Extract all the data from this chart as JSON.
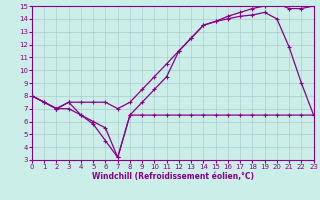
{
  "xlabel": "Windchill (Refroidissement éolien,°C)",
  "xlim": [
    0,
    23
  ],
  "ylim": [
    3,
    15
  ],
  "xticks": [
    0,
    1,
    2,
    3,
    4,
    5,
    6,
    7,
    8,
    9,
    10,
    11,
    12,
    13,
    14,
    15,
    16,
    17,
    18,
    19,
    20,
    21,
    22,
    23
  ],
  "yticks": [
    3,
    4,
    5,
    6,
    7,
    8,
    9,
    10,
    11,
    12,
    13,
    14,
    15
  ],
  "background_color": "#cceee8",
  "grid_color": "#aacccc",
  "line_color": "#880088",
  "line1_x": [
    0,
    1,
    2,
    3,
    4,
    5,
    6,
    7,
    8,
    9,
    10,
    11,
    12,
    13,
    14,
    15,
    16,
    17,
    18,
    19,
    20,
    21,
    22,
    23
  ],
  "line1_y": [
    8.0,
    7.5,
    7.0,
    7.5,
    6.5,
    6.0,
    5.5,
    3.2,
    6.5,
    7.5,
    8.5,
    9.5,
    11.5,
    12.5,
    13.5,
    13.8,
    14.0,
    14.2,
    14.3,
    14.5,
    14.0,
    11.8,
    9.0,
    6.5
  ],
  "line2_x": [
    0,
    1,
    2,
    3,
    4,
    5,
    6,
    7,
    8,
    9,
    10,
    11,
    12,
    13,
    14,
    15,
    16,
    17,
    18,
    19,
    20,
    21,
    22,
    23
  ],
  "line2_y": [
    8.0,
    7.5,
    7.0,
    7.5,
    7.5,
    7.5,
    7.5,
    7.0,
    7.5,
    8.5,
    9.5,
    10.5,
    11.5,
    12.5,
    13.5,
    13.8,
    14.2,
    14.5,
    14.8,
    15.0,
    15.2,
    14.8,
    14.8,
    15.0
  ],
  "line3_x": [
    0,
    1,
    2,
    3,
    4,
    5,
    6,
    7,
    8,
    9,
    10,
    11,
    12,
    13,
    14,
    15,
    16,
    17,
    18,
    19,
    20,
    21,
    22,
    23
  ],
  "line3_y": [
    8.0,
    7.5,
    7.0,
    7.0,
    6.5,
    5.8,
    4.5,
    3.2,
    6.5,
    6.5,
    6.5,
    6.5,
    6.5,
    6.5,
    6.5,
    6.5,
    6.5,
    6.5,
    6.5,
    6.5,
    6.5,
    6.5,
    6.5,
    6.5
  ]
}
